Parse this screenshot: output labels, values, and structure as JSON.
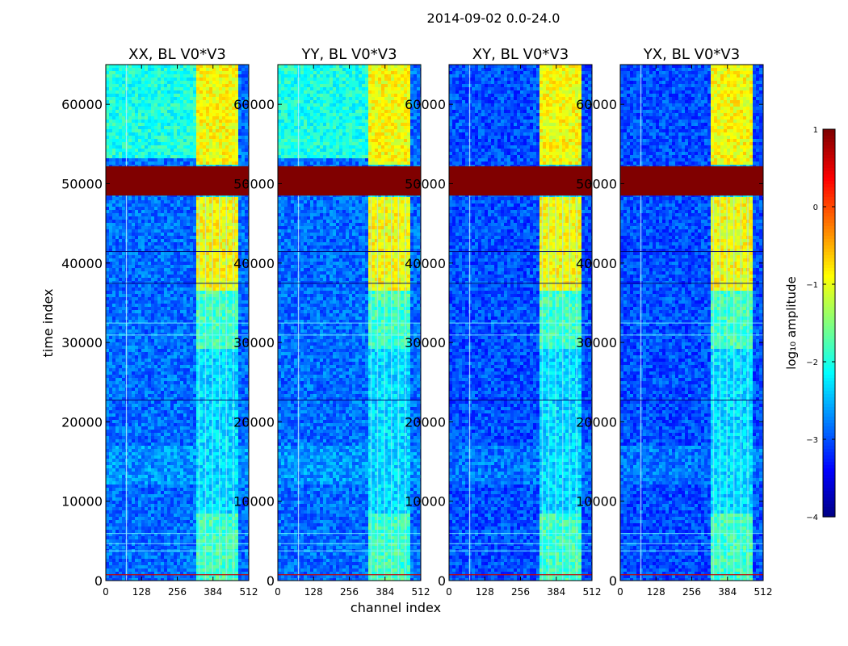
{
  "figure": {
    "suptitle": "2014-09-02 0.0-24.0"
  },
  "chart_data": {
    "type": "heatmap",
    "title": "2014-09-02 0.0-24.0",
    "xlabel": "channel index",
    "ylabel": "time index",
    "xlim": [
      0,
      512
    ],
    "ylim": [
      0,
      65000
    ],
    "xticks": [
      0,
      128,
      256,
      384,
      512
    ],
    "yticks": [
      0,
      10000,
      20000,
      30000,
      40000,
      50000,
      60000
    ],
    "panels": [
      {
        "title": "XX, BL V0*V3",
        "pol": "XX"
      },
      {
        "title": "YY, BL V0*V3",
        "pol": "YY"
      },
      {
        "title": "XY, BL V0*V3",
        "pol": "XY"
      },
      {
        "title": "YX, BL V0*V3",
        "pol": "YX"
      }
    ],
    "colorbar": {
      "label": "log₁₀ amplitude",
      "vmin": -4,
      "vmax": 1,
      "ticks": [
        1,
        0,
        -1,
        -2,
        -3,
        -4
      ],
      "tick_labels": [
        "1",
        "0",
        "−1",
        "−2",
        "−3",
        "−4"
      ],
      "colormap": "jet"
    },
    "features": {
      "saturated_time_band": [
        48500,
        52200
      ],
      "bright_channel_range": [
        320,
        470
      ],
      "bright_time_ranges": [
        [
          36500,
          48500
        ],
        [
          52200,
          65000
        ]
      ],
      "moderate_time_ranges": [
        [
          29000,
          36500
        ],
        [
          0,
          8500
        ]
      ],
      "low_band": [
        12000,
        16800
      ],
      "rfi_channel": 72,
      "rfi_row_time": 800
    }
  }
}
